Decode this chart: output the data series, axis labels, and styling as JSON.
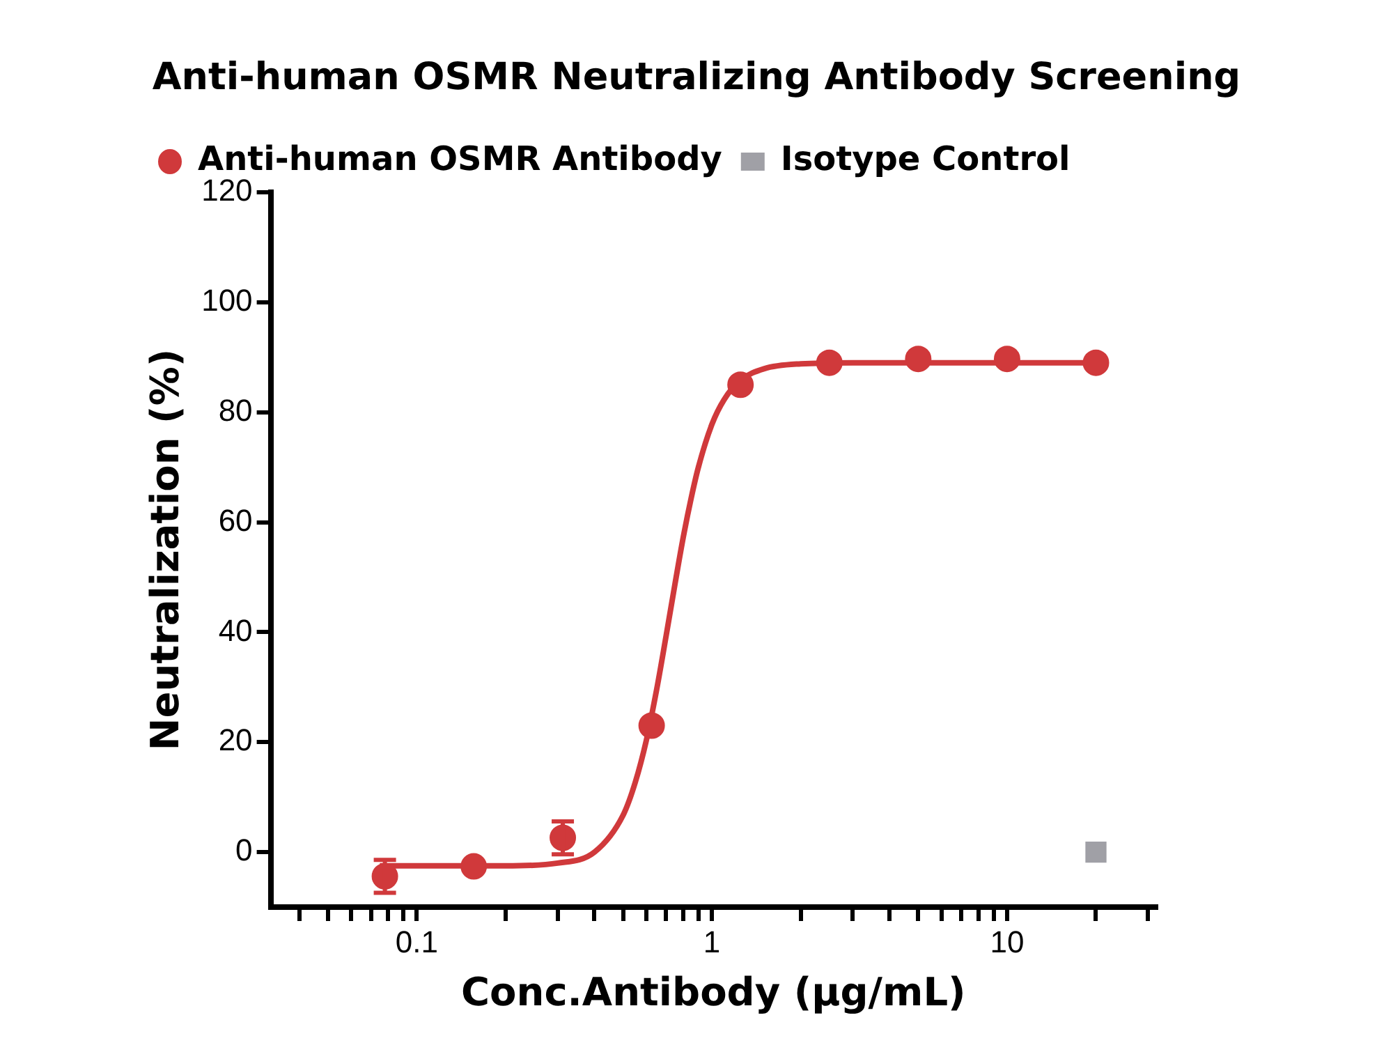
{
  "chart_data": {
    "type": "scatter",
    "title": "Anti-human OSMR Neutralizing Antibody Screening",
    "xlabel": "Conc.Antibody (µg/mL)",
    "ylabel": "Neutralization (%)",
    "log": "x",
    "grid": false,
    "legend": "top left",
    "xlim": [
      0.032,
      32
    ],
    "xticks": [
      {
        "value": 0.04,
        "label": null
      },
      {
        "value": 0.05,
        "label": null
      },
      {
        "value": 0.06,
        "label": null
      },
      {
        "value": 0.07,
        "label": null
      },
      {
        "value": 0.08,
        "label": null
      },
      {
        "value": 0.09,
        "label": null
      },
      0.1,
      {
        "value": 0.2,
        "label": null
      },
      {
        "value": 0.3,
        "label": null
      },
      {
        "value": 0.4,
        "label": null
      },
      {
        "value": 0.5,
        "label": null
      },
      {
        "value": 0.6,
        "label": null
      },
      {
        "value": 0.7,
        "label": null
      },
      {
        "value": 0.8,
        "label": null
      },
      {
        "value": 0.9,
        "label": null
      },
      1,
      {
        "value": 2,
        "label": null
      },
      {
        "value": 3,
        "label": null
      },
      {
        "value": 4,
        "label": null
      },
      {
        "value": 5,
        "label": null
      },
      {
        "value": 6,
        "label": null
      },
      {
        "value": 7,
        "label": null
      },
      {
        "value": 8,
        "label": null
      },
      {
        "value": 9,
        "label": null
      },
      10,
      {
        "value": 20,
        "label": null
      },
      {
        "value": 30,
        "label": null
      }
    ],
    "ylim": [
      -10,
      120
    ],
    "yticks": [
      0,
      20,
      40,
      60,
      80,
      100,
      120
    ],
    "series": [
      {
        "name": "Anti-human OSMR Antibody",
        "marker": "circle",
        "color": "#d0393b",
        "x": [
          0.078,
          0.156,
          0.3125,
          0.625,
          1.25,
          2.5,
          5,
          10,
          20
        ],
        "values": [
          -4.4,
          -2.6,
          2.6,
          23,
          85,
          89,
          89.7,
          89.7,
          89
        ],
        "errors": [
          3,
          null,
          3,
          null,
          null,
          null,
          null,
          null,
          null
        ]
      },
      {
        "type": "line",
        "marker": "none",
        "line_style": "solid",
        "color": "#d0393b",
        "x": [
          0.075,
          0.1,
          0.2,
          0.3,
          0.4,
          0.5,
          0.55,
          0.6,
          0.65,
          0.7,
          0.75,
          0.8,
          0.85,
          0.9,
          1,
          1.1,
          1.25,
          1.5,
          2,
          3,
          5,
          10,
          20
        ],
        "values": [
          -2.5,
          -2.5,
          -2.5,
          -2,
          0,
          6.7,
          12.7,
          20.4,
          29.6,
          39.4,
          48.8,
          57.3,
          64.3,
          70,
          77.8,
          82.3,
          85.8,
          87.9,
          88.8,
          89,
          89,
          89,
          89
        ]
      },
      {
        "name": "Isotype Control",
        "marker": "square",
        "color": "#a0a0a6",
        "x": [
          20
        ],
        "values": [
          0
        ]
      }
    ]
  }
}
